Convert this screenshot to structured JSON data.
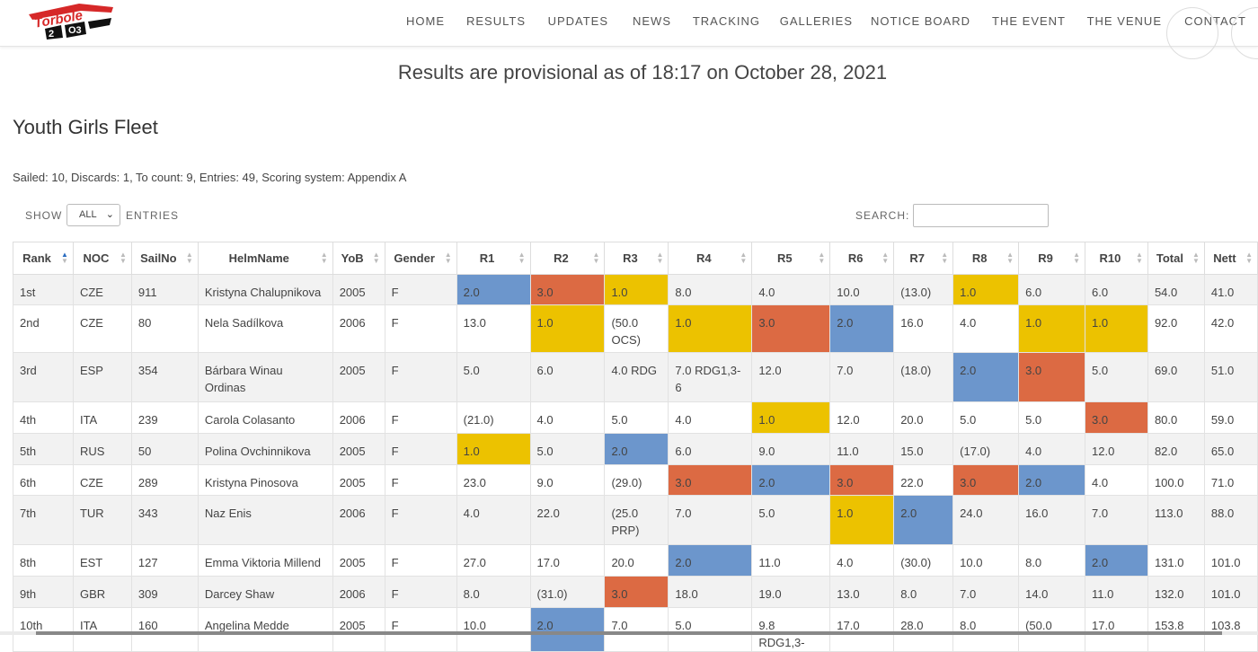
{
  "nav": {
    "logo_alt": "logo",
    "items": [
      "HOME",
      "RESULTS",
      "UPDATES",
      "NEWS",
      "TRACKING",
      "GALLERIES",
      "NOTICE BOARD",
      "THE EVENT",
      "THE VENUE",
      "CONTACT"
    ]
  },
  "headline": "Results are provisional as of 18:17 on October 28, 2021",
  "fleet_title": "Youth Girls Fleet",
  "summary": "Sailed: 10, Discards: 1, To count: 9, Entries: 49, Scoring system: Appendix A",
  "controls": {
    "show_label": "SHOW",
    "show_value": "ALL",
    "entries_label": "ENTRIES",
    "search_label": "SEARCH:",
    "search_value": ""
  },
  "colors": {
    "blue": "#6c96cc",
    "orange": "#dc6a43",
    "yellow": "#ecc200",
    "helm_link": "#c0392b"
  },
  "table": {
    "headers": [
      "Rank",
      "NOC",
      "SailNo",
      "HelmName",
      "YoB",
      "Gender",
      "R1",
      "R2",
      "R3",
      "R4",
      "R5",
      "R6",
      "R7",
      "R8",
      "R9",
      "R10",
      "Total",
      "Nett"
    ],
    "rows": [
      {
        "cells": [
          "1st",
          "CZE",
          "911",
          "Kristyna Chalupnikova",
          "2005",
          "F",
          "2.0",
          "3.0",
          "1.0",
          "8.0",
          "4.0",
          "10.0",
          "(13.0)",
          "1.0",
          "6.0",
          "6.0",
          "54.0",
          "41.0"
        ],
        "colors": {
          "R1": "blue",
          "R2": "orange",
          "R3": "yellow",
          "R8": "yellow"
        }
      },
      {
        "cells": [
          "2nd",
          "CZE",
          "80",
          "Nela Sadílkova",
          "2006",
          "F",
          "13.0",
          "1.0",
          "(50.0 OCS)",
          "1.0",
          "3.0",
          "2.0",
          "16.0",
          "4.0",
          "1.0",
          "1.0",
          "92.0",
          "42.0"
        ],
        "colors": {
          "R2": "yellow",
          "R4": "yellow",
          "R5": "orange",
          "R6": "blue",
          "R9": "yellow",
          "R10": "yellow"
        }
      },
      {
        "cells": [
          "3rd",
          "ESP",
          "354",
          "Bárbara Winau Ordinas",
          "2005",
          "F",
          "5.0",
          "6.0",
          "4.0 RDG",
          "7.0 RDG1,3-6",
          "12.0",
          "7.0",
          "(18.0)",
          "2.0",
          "3.0",
          "5.0",
          "69.0",
          "51.0"
        ],
        "colors": {
          "R8": "blue",
          "R9": "orange"
        }
      },
      {
        "cells": [
          "4th",
          "ITA",
          "239",
          "Carola Colasanto",
          "2006",
          "F",
          "(21.0)",
          "4.0",
          "5.0",
          "4.0",
          "1.0",
          "12.0",
          "20.0",
          "5.0",
          "5.0",
          "3.0",
          "80.0",
          "59.0"
        ],
        "colors": {
          "R5": "yellow",
          "R10": "orange"
        }
      },
      {
        "cells": [
          "5th",
          "RUS",
          "50",
          "Polina Ovchinnikova",
          "2005",
          "F",
          "1.0",
          "5.0",
          "2.0",
          "6.0",
          "9.0",
          "11.0",
          "15.0",
          "(17.0)",
          "4.0",
          "12.0",
          "82.0",
          "65.0"
        ],
        "colors": {
          "R1": "yellow",
          "R3": "blue"
        }
      },
      {
        "cells": [
          "6th",
          "CZE",
          "289",
          "Kristyna Pinosova",
          "2005",
          "F",
          "23.0",
          "9.0",
          "(29.0)",
          "3.0",
          "2.0",
          "3.0",
          "22.0",
          "3.0",
          "2.0",
          "4.0",
          "100.0",
          "71.0"
        ],
        "colors": {
          "R4": "orange",
          "R5": "blue",
          "R6": "orange",
          "R8": "orange",
          "R9": "blue"
        }
      },
      {
        "cells": [
          "7th",
          "TUR",
          "343",
          "Naz Enis",
          "2006",
          "F",
          "4.0",
          "22.0",
          "(25.0 PRP)",
          "7.0",
          "5.0",
          "1.0",
          "2.0",
          "24.0",
          "16.0",
          "7.0",
          "113.0",
          "88.0"
        ],
        "colors": {
          "R6": "yellow",
          "R7": "blue"
        }
      },
      {
        "cells": [
          "8th",
          "EST",
          "127",
          "Emma Viktoria Millend",
          "2005",
          "F",
          "27.0",
          "17.0",
          "20.0",
          "2.0",
          "11.0",
          "4.0",
          "(30.0)",
          "10.0",
          "8.0",
          "2.0",
          "131.0",
          "101.0"
        ],
        "colors": {
          "R4": "blue",
          "R10": "blue"
        }
      },
      {
        "cells": [
          "9th",
          "GBR",
          "309",
          "Darcey Shaw",
          "2006",
          "F",
          "8.0",
          "(31.0)",
          "3.0",
          "18.0",
          "19.0",
          "13.0",
          "8.0",
          "7.0",
          "14.0",
          "11.0",
          "132.0",
          "101.0"
        ],
        "colors": {
          "R3": "orange"
        }
      },
      {
        "cells": [
          "10th",
          "ITA",
          "160",
          "Angelina Medde",
          "2005",
          "F",
          "10.0",
          "2.0",
          "7.0",
          "5.0",
          "9.8 RDG1,3-",
          "17.0",
          "28.0",
          "8.0",
          "(50.0",
          "17.0",
          "153.8",
          "103.8"
        ],
        "colors": {
          "R2": "blue"
        }
      }
    ]
  }
}
